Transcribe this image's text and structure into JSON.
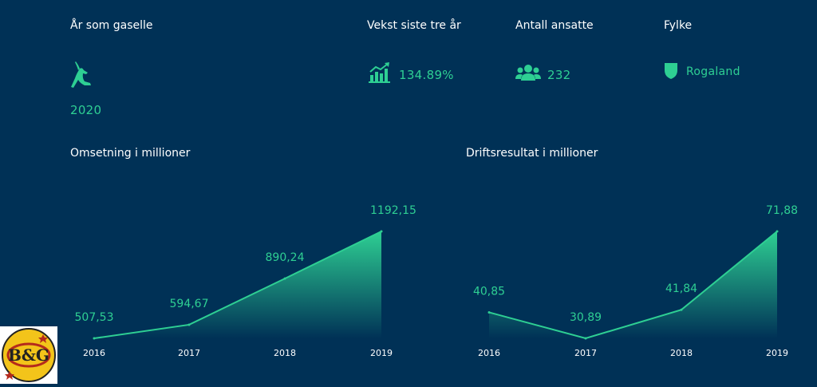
{
  "stats": {
    "gazelle_year": {
      "label": "År som gaselle",
      "value": "2020",
      "icon": "gazelle-icon"
    },
    "growth": {
      "label": "Vekst siste tre år",
      "value": "134.89%",
      "icon": "growth-chart-icon"
    },
    "employees": {
      "label": "Antall ansatte",
      "value": "232",
      "icon": "people-icon"
    },
    "county": {
      "label": "Fylke",
      "value": "Rogaland",
      "icon": "county-shield-icon"
    }
  },
  "colors": {
    "background": "#003156",
    "accent": "#2ecf93",
    "text": "#ffffff"
  },
  "logo": {
    "text": "B&G"
  },
  "chart_data": [
    {
      "type": "area",
      "title": "Omsetning i millioner",
      "x": [
        "2016",
        "2017",
        "2018",
        "2019"
      ],
      "values": [
        507.53,
        594.67,
        890.24,
        1192.15
      ],
      "value_labels": [
        "507,53",
        "594,67",
        "890,24",
        "1192,15"
      ]
    },
    {
      "type": "area",
      "title": "Driftsresultat i millioner",
      "x": [
        "2016",
        "2017",
        "2018",
        "2019"
      ],
      "values": [
        40.85,
        30.89,
        41.84,
        71.88
      ],
      "value_labels": [
        "40,85",
        "30,89",
        "41,84",
        "71,88"
      ]
    }
  ]
}
